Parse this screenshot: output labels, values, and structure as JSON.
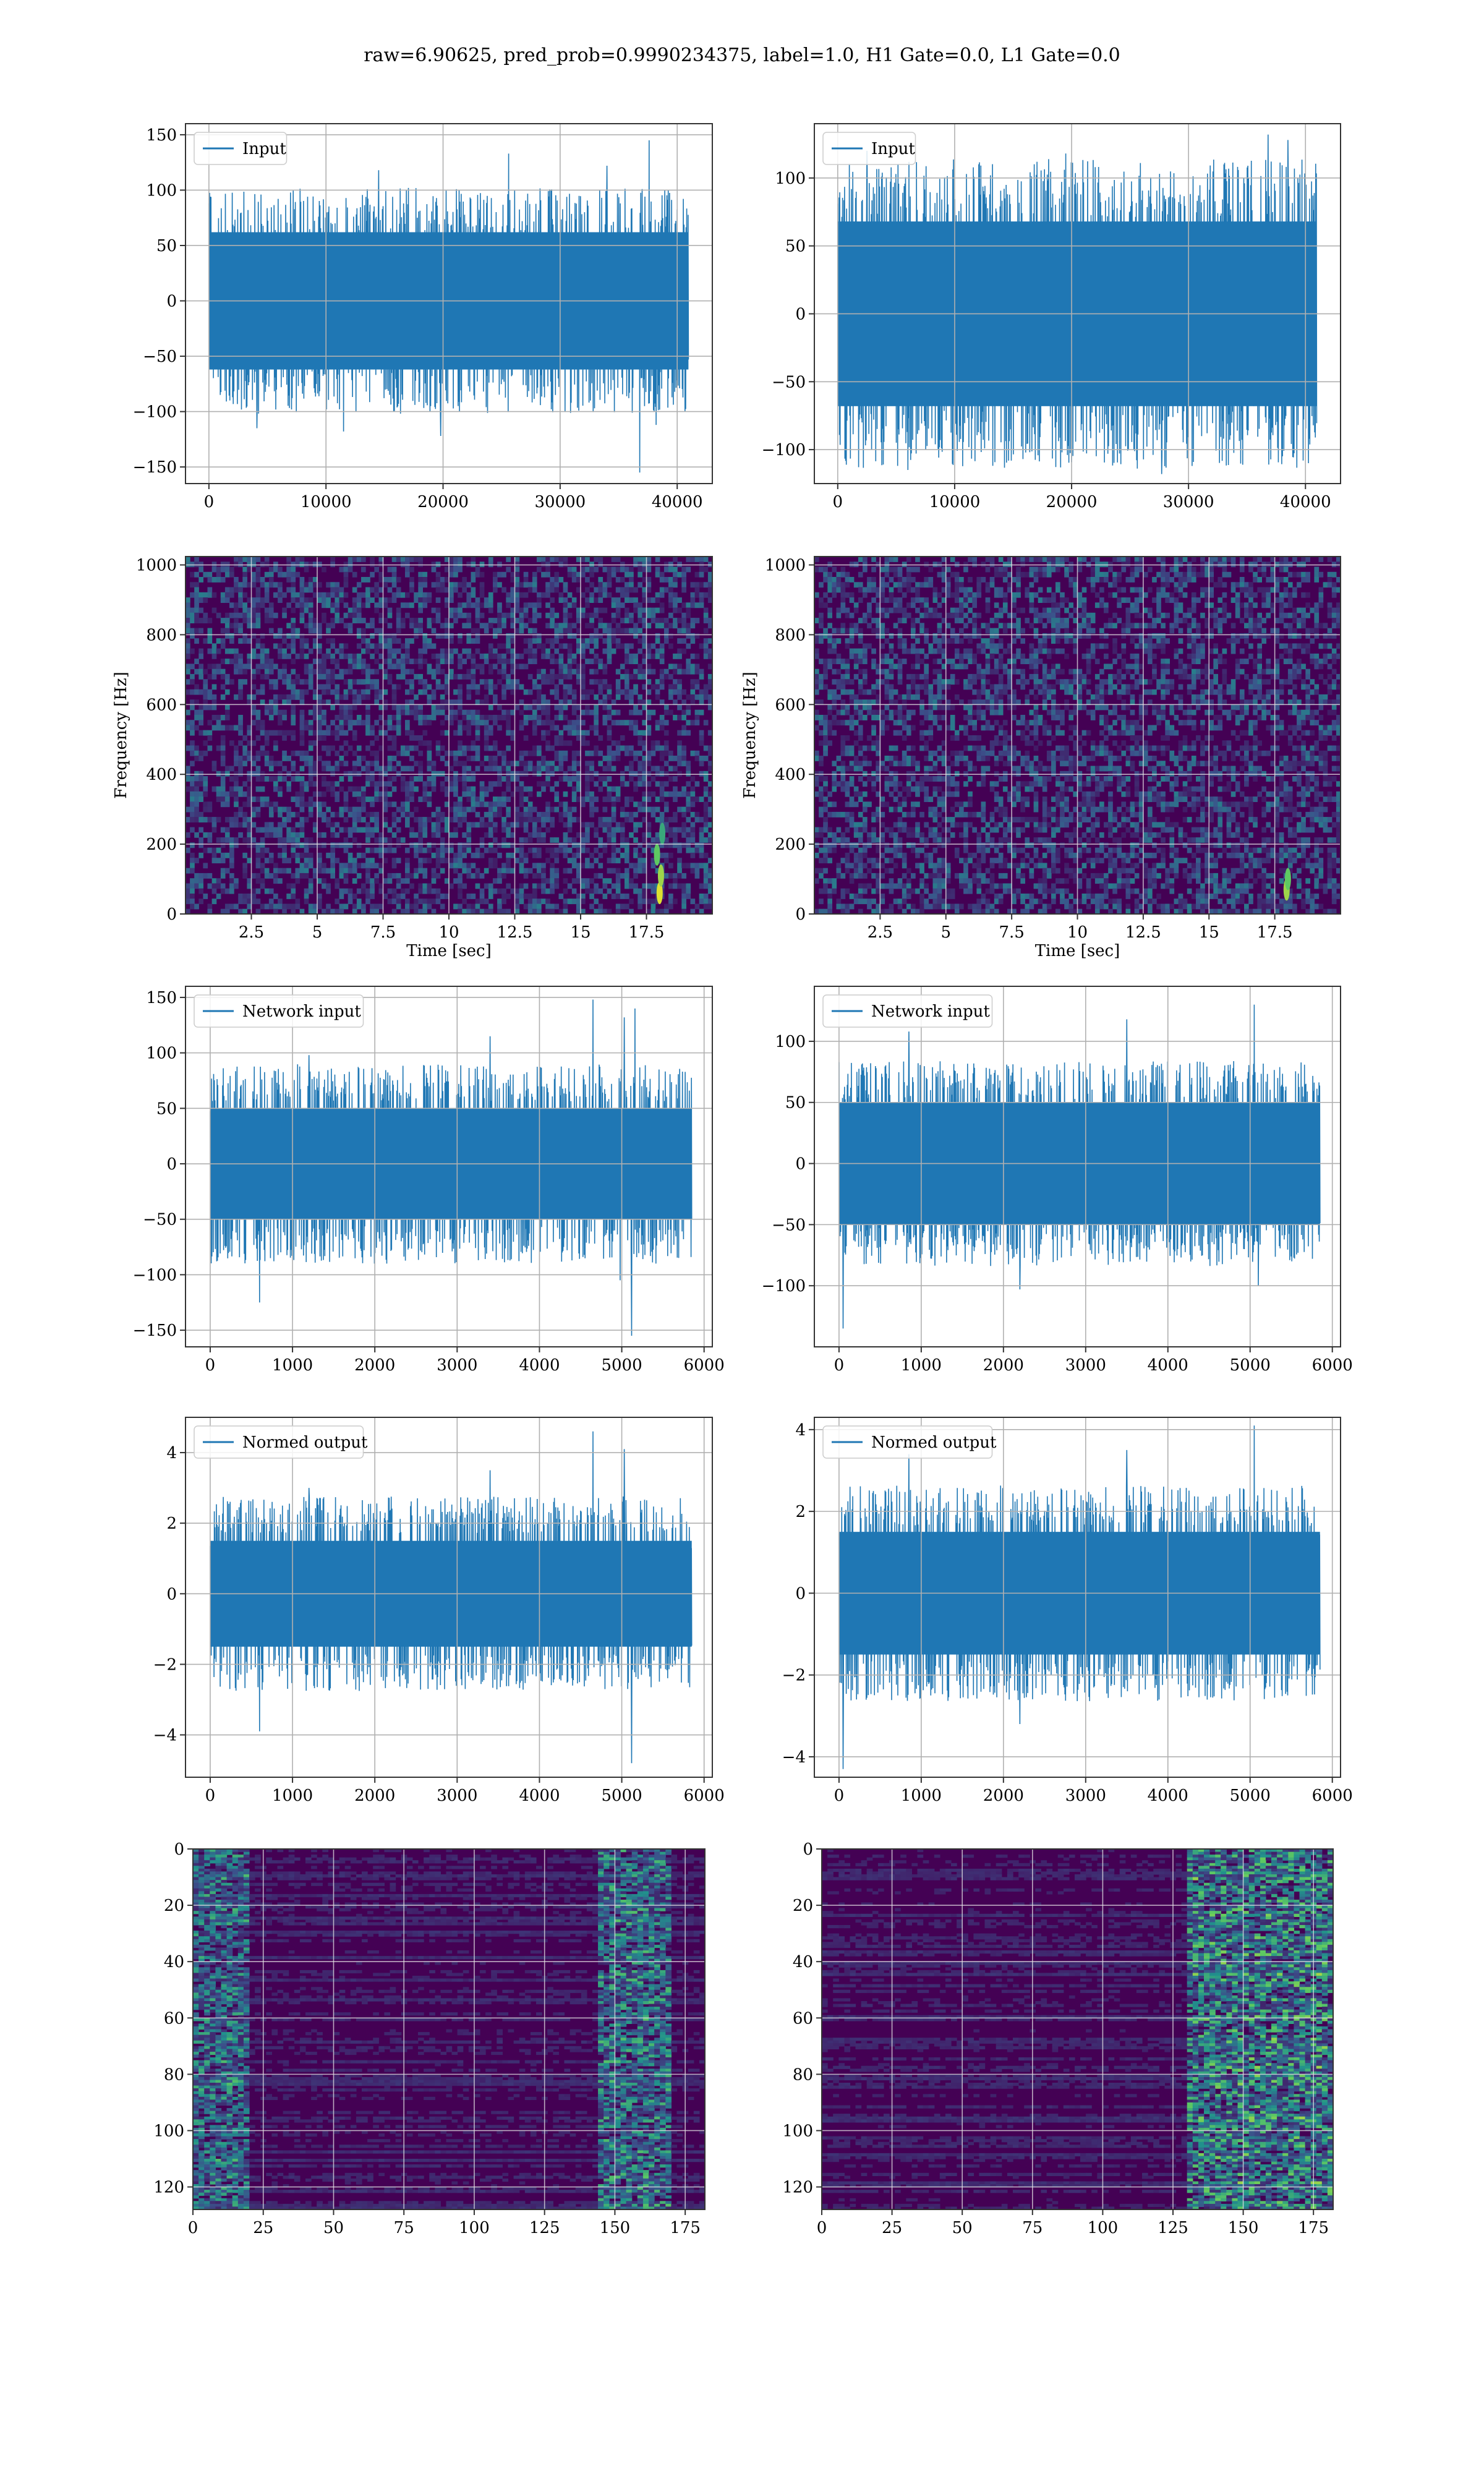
{
  "figure": {
    "title": "raw=6.90625, pred_prob=0.9990234375, label=1.0, H1 Gate=0.0, L1 Gate=0.0"
  },
  "colors": {
    "series": "#1f77b4",
    "axes": "#333333",
    "grid": "#b0b0b0",
    "heatmap_low": "#440154",
    "heatmap_mid": "#21918c",
    "heatmap_high": "#fde725"
  },
  "chart_data": [
    {
      "id": "input-h1",
      "type": "line",
      "title": "",
      "xlabel": "",
      "ylabel": "",
      "legend": [
        "Input"
      ],
      "legend_placement": "top-left",
      "grid": true,
      "xlim": [
        -2000,
        43000
      ],
      "ylim": [
        -165,
        160
      ],
      "xticks": [
        0,
        10000,
        20000,
        30000,
        40000
      ],
      "yticks": [
        -150,
        -100,
        -50,
        0,
        50,
        100,
        150
      ],
      "x_range": [
        0,
        40960
      ],
      "envelope_core": 62,
      "envelope_typical": 85,
      "peaks": [
        {
          "x": 4100,
          "y": -115
        },
        {
          "x": 11500,
          "y": -118
        },
        {
          "x": 14500,
          "y": 118
        },
        {
          "x": 19800,
          "y": -122
        },
        {
          "x": 25600,
          "y": 133
        },
        {
          "x": 34000,
          "y": 122
        },
        {
          "x": 36800,
          "y": -155
        },
        {
          "x": 37600,
          "y": 145
        },
        {
          "x": 38200,
          "y": -112
        }
      ]
    },
    {
      "id": "input-l1",
      "type": "line",
      "title": "",
      "xlabel": "",
      "ylabel": "",
      "legend": [
        "Input"
      ],
      "legend_placement": "top-left",
      "grid": true,
      "xlim": [
        -2000,
        43000
      ],
      "ylim": [
        -125,
        140
      ],
      "xticks": [
        0,
        10000,
        20000,
        30000,
        40000
      ],
      "yticks": [
        -100,
        -50,
        0,
        50,
        100
      ],
      "x_range": [
        0,
        40960
      ],
      "envelope_core": 68,
      "envelope_typical": 95,
      "peaks": [
        {
          "x": 2500,
          "y": 120
        },
        {
          "x": 6000,
          "y": -115
        },
        {
          "x": 19500,
          "y": 118
        },
        {
          "x": 27700,
          "y": -118
        },
        {
          "x": 36800,
          "y": 132
        },
        {
          "x": 38500,
          "y": 128
        },
        {
          "x": 39800,
          "y": -108
        }
      ]
    },
    {
      "id": "spec-h1",
      "type": "heatmap",
      "title": "",
      "xlabel": "Time [sec]",
      "ylabel": "Frequency [Hz]",
      "grid": true,
      "xlim": [
        0,
        20
      ],
      "ylim": [
        0,
        1024
      ],
      "xticks": [
        2.5,
        5.0,
        7.5,
        10.0,
        12.5,
        15.0,
        17.5
      ],
      "yticks": [
        0,
        200,
        400,
        600,
        800,
        1000
      ],
      "colormap": "viridis",
      "bright_spots": [
        {
          "x": 18.0,
          "y": 60,
          "v": 0.95
        },
        {
          "x": 18.05,
          "y": 110,
          "v": 0.85
        },
        {
          "x": 17.9,
          "y": 170,
          "v": 0.75
        },
        {
          "x": 18.1,
          "y": 230,
          "v": 0.6
        }
      ]
    },
    {
      "id": "spec-l1",
      "type": "heatmap",
      "title": "",
      "xlabel": "Time [sec]",
      "ylabel": "Frequency [Hz]",
      "grid": true,
      "xlim": [
        0,
        20
      ],
      "ylim": [
        0,
        1024
      ],
      "xticks": [
        2.5,
        5.0,
        7.5,
        10.0,
        12.5,
        15.0,
        17.5
      ],
      "yticks": [
        0,
        200,
        400,
        600,
        800,
        1000
      ],
      "colormap": "viridis",
      "bright_spots": [
        {
          "x": 17.95,
          "y": 70,
          "v": 0.85
        },
        {
          "x": 18.0,
          "y": 100,
          "v": 0.75
        }
      ]
    },
    {
      "id": "netin-h1",
      "type": "line",
      "title": "",
      "xlabel": "",
      "ylabel": "",
      "legend": [
        "Network input"
      ],
      "legend_placement": "top-left",
      "grid": true,
      "xlim": [
        -300,
        6100
      ],
      "ylim": [
        -165,
        160
      ],
      "xticks": [
        0,
        1000,
        2000,
        3000,
        4000,
        5000,
        6000
      ],
      "yticks": [
        -150,
        -100,
        -50,
        0,
        50,
        100,
        150
      ],
      "x_range": [
        0,
        5850
      ],
      "envelope_core": 50,
      "envelope_typical": 75,
      "peaks": [
        {
          "x": 600,
          "y": -125
        },
        {
          "x": 1200,
          "y": 98
        },
        {
          "x": 3400,
          "y": 115
        },
        {
          "x": 4650,
          "y": 148
        },
        {
          "x": 4980,
          "y": -105
        },
        {
          "x": 5030,
          "y": 132
        },
        {
          "x": 5120,
          "y": -155
        },
        {
          "x": 5160,
          "y": 140
        }
      ]
    },
    {
      "id": "netin-l1",
      "type": "line",
      "title": "",
      "xlabel": "",
      "ylabel": "",
      "legend": [
        "Network input"
      ],
      "legend_placement": "top-left",
      "grid": true,
      "xlim": [
        -300,
        6100
      ],
      "ylim": [
        -150,
        145
      ],
      "xticks": [
        0,
        1000,
        2000,
        3000,
        4000,
        5000,
        6000
      ],
      "yticks": [
        -100,
        -50,
        0,
        50,
        100
      ],
      "x_range": [
        0,
        5850
      ],
      "envelope_core": 50,
      "envelope_typical": 70,
      "peaks": [
        {
          "x": 50,
          "y": -135
        },
        {
          "x": 850,
          "y": 108
        },
        {
          "x": 3500,
          "y": 118
        },
        {
          "x": 5050,
          "y": 130
        },
        {
          "x": 5100,
          "y": -100
        },
        {
          "x": 2200,
          "y": -103
        }
      ]
    },
    {
      "id": "normed-h1",
      "type": "line",
      "title": "",
      "xlabel": "",
      "ylabel": "",
      "legend": [
        "Normed output"
      ],
      "legend_placement": "top-left",
      "grid": true,
      "xlim": [
        -300,
        6100
      ],
      "ylim": [
        -5.2,
        5.0
      ],
      "xticks": [
        0,
        1000,
        2000,
        3000,
        4000,
        5000,
        6000
      ],
      "yticks": [
        -4,
        -2,
        0,
        2,
        4
      ],
      "x_range": [
        0,
        5850
      ],
      "envelope_core": 1.5,
      "envelope_typical": 2.3,
      "peaks": [
        {
          "x": 600,
          "y": -3.9
        },
        {
          "x": 1200,
          "y": 3.0
        },
        {
          "x": 3400,
          "y": 3.5
        },
        {
          "x": 4650,
          "y": 4.6
        },
        {
          "x": 5030,
          "y": 4.1
        },
        {
          "x": 5120,
          "y": -4.8
        }
      ]
    },
    {
      "id": "normed-l1",
      "type": "line",
      "title": "",
      "xlabel": "",
      "ylabel": "",
      "legend": [
        "Normed output"
      ],
      "legend_placement": "top-left",
      "grid": true,
      "xlim": [
        -300,
        6100
      ],
      "ylim": [
        -4.5,
        4.3
      ],
      "xticks": [
        0,
        1000,
        2000,
        3000,
        4000,
        5000,
        6000
      ],
      "yticks": [
        -4,
        -2,
        0,
        2,
        4
      ],
      "x_range": [
        0,
        5850
      ],
      "envelope_core": 1.5,
      "envelope_typical": 2.2,
      "peaks": [
        {
          "x": 50,
          "y": -4.3
        },
        {
          "x": 850,
          "y": 3.4
        },
        {
          "x": 3500,
          "y": 3.5
        },
        {
          "x": 5050,
          "y": 4.1
        },
        {
          "x": 2200,
          "y": -3.2
        }
      ]
    },
    {
      "id": "feat-h1",
      "type": "heatmap",
      "title": "",
      "xlabel": "",
      "ylabel": "",
      "grid": true,
      "xlim": [
        0,
        182
      ],
      "ylim": [
        128,
        0
      ],
      "xticks": [
        0,
        25,
        50,
        75,
        100,
        125,
        150,
        175
      ],
      "yticks": [
        0,
        20,
        40,
        60,
        80,
        100,
        120
      ],
      "colormap": "viridis",
      "bright_bands": [
        {
          "x0": 0,
          "x1": 20,
          "intensity": 0.55
        },
        {
          "x0": 145,
          "x1": 170,
          "intensity": 0.6
        }
      ]
    },
    {
      "id": "feat-l1",
      "type": "heatmap",
      "title": "",
      "xlabel": "",
      "ylabel": "",
      "grid": true,
      "xlim": [
        0,
        182
      ],
      "ylim": [
        128,
        0
      ],
      "xticks": [
        0,
        25,
        50,
        75,
        100,
        125,
        150,
        175
      ],
      "yticks": [
        0,
        20,
        40,
        60,
        80,
        100,
        120
      ],
      "colormap": "viridis",
      "bright_bands": [
        {
          "x0": 130,
          "x1": 182,
          "intensity": 0.7
        }
      ]
    }
  ]
}
